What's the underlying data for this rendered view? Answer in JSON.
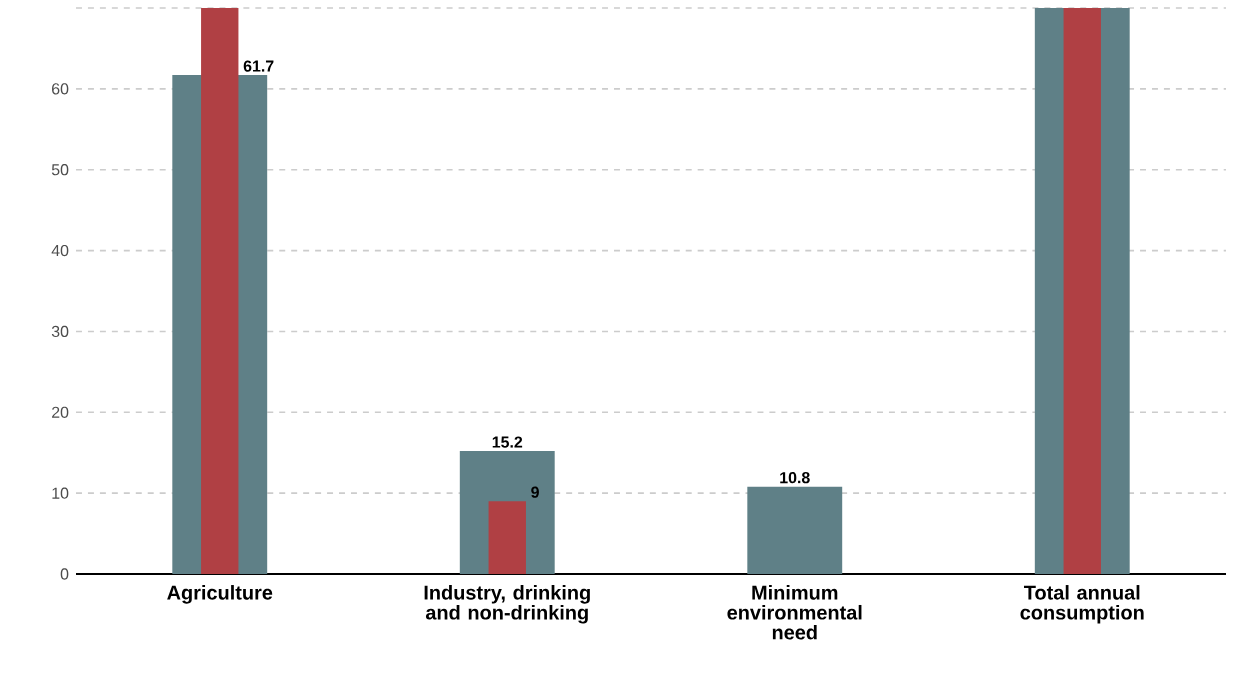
{
  "chart_data": {
    "type": "bar",
    "categories": [
      "Agriculture",
      "Industry, drinking and non-drinking",
      "Minimum environmental need",
      "Total annual consumption"
    ],
    "series": [
      {
        "color": "#5f8087",
        "values": [
          61.7,
          15.2,
          10.8,
          70
        ],
        "value_labels": [
          "61.7",
          "15.2",
          "10.8",
          null
        ]
      },
      {
        "color": "#b04044",
        "values": [
          70,
          9,
          null,
          70
        ],
        "value_labels": [
          null,
          "9",
          null,
          null
        ]
      }
    ],
    "ylim": [
      0,
      70
    ],
    "yticks": [
      0,
      10,
      20,
      30,
      40,
      50,
      60,
      {
        "value": 70,
        "label": null
      }
    ],
    "grid": "y"
  }
}
